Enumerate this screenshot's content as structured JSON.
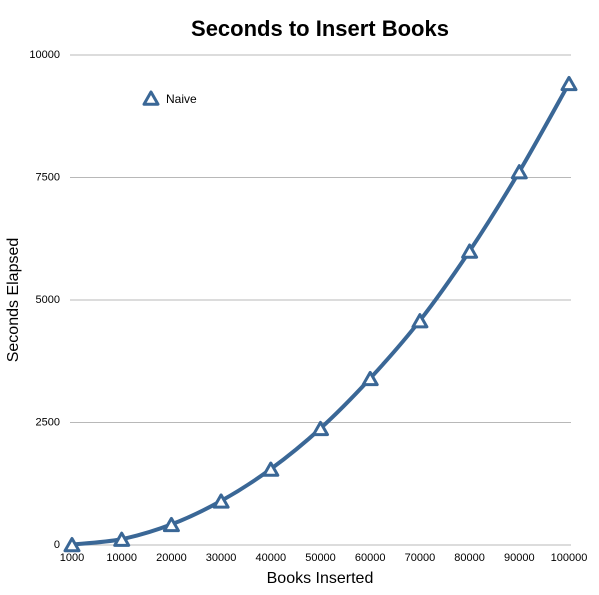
{
  "chart_data": {
    "type": "line",
    "title": "Seconds to Insert Books",
    "x_label": "Books Inserted",
    "y_label": "Seconds Elapsed",
    "categories": [
      "1000",
      "10000",
      "20000",
      "30000",
      "40000",
      "50000",
      "60000",
      "70000",
      "80000",
      "90000",
      "100000"
    ],
    "series": [
      {
        "name": "Naive",
        "color": "#3a6796",
        "values": [
          10,
          120,
          420,
          900,
          1550,
          2380,
          3400,
          4580,
          6000,
          7620,
          9420
        ]
      }
    ],
    "ylim": [
      0,
      10000
    ],
    "yticks": [
      0,
      2500,
      5000,
      7500,
      10000
    ],
    "grid": true,
    "legend": "top-left"
  }
}
